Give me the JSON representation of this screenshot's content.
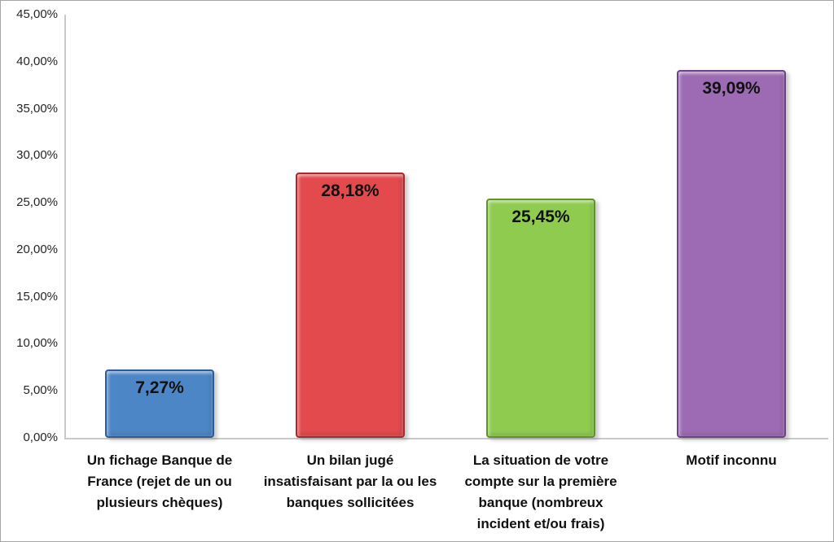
{
  "chart_data": {
    "type": "bar",
    "title": "",
    "xlabel": "",
    "ylabel": "",
    "grid": false,
    "legend": false,
    "ylim": [
      0,
      45
    ],
    "ytick_labels": [
      "0,00%",
      "5,00%",
      "10,00%",
      "15,00%",
      "20,00%",
      "25,00%",
      "30,00%",
      "35,00%",
      "40,00%",
      "45,00%"
    ],
    "categories": [
      "Un fichage Banque de\nFrance (rejet de un ou\nplusieurs chèques)",
      "Un bilan jugé\ninsatisfaisant par la ou les\nbanques sollicitées",
      "La situation de votre\ncompte sur la première\nbanque (nombreux\nincident et/ou frais)",
      "Motif inconnu"
    ],
    "values": [
      7.27,
      28.18,
      25.45,
      39.09
    ],
    "value_labels": [
      "7,27%",
      "28,18%",
      "25,45%",
      "39,09%"
    ],
    "series_colors": [
      {
        "fill": "#4d86c6",
        "border": "#2e5d96"
      },
      {
        "fill": "#e24a4e",
        "border": "#a32c30"
      },
      {
        "fill": "#8ecb4f",
        "border": "#5f9428"
      },
      {
        "fill": "#9c6bb3",
        "border": "#6e4386"
      }
    ],
    "axis_line_color": "#c9c9c9"
  }
}
